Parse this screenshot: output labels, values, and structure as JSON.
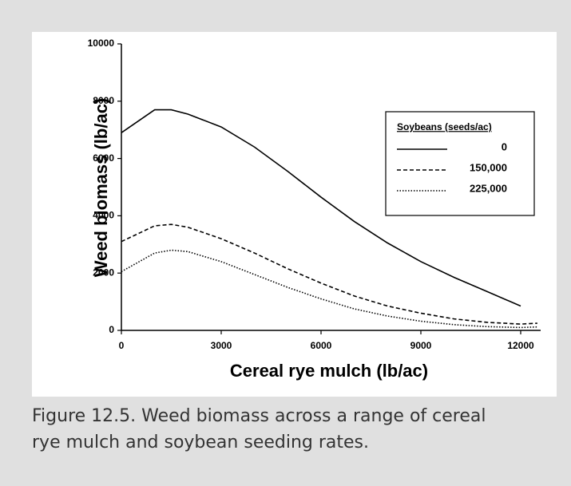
{
  "chart_data": {
    "type": "line",
    "xlabel": "Cereal rye mulch (lb/ac)",
    "ylabel": "Weed biomass (lb/ac)",
    "caption": "Figure 12.5. Weed biomass across a range of cereal rye mulch and soybean seeding rates.",
    "legend_title": "Soybeans (seeds/ac)",
    "legend": "upper right",
    "x": [
      0,
      1000,
      1500,
      2000,
      3000,
      4000,
      5000,
      6000,
      7000,
      8000,
      9000,
      10000,
      11000,
      12000,
      12500
    ],
    "series": [
      {
        "name": "0",
        "color": "#000000",
        "style": "solid",
        "values": [
          6900,
          7700,
          7700,
          7550,
          7100,
          6400,
          5550,
          4650,
          3800,
          3050,
          2400,
          1850,
          1350,
          850,
          null
        ]
      },
      {
        "name": "150,000",
        "color": "#000000",
        "style": "dashed",
        "values": [
          3100,
          3650,
          3700,
          3600,
          3200,
          2700,
          2150,
          1650,
          1200,
          850,
          600,
          400,
          280,
          220,
          250
        ]
      },
      {
        "name": "225,000",
        "color": "#000000",
        "style": "dotted",
        "values": [
          2050,
          2700,
          2800,
          2750,
          2400,
          1950,
          1500,
          1100,
          750,
          500,
          320,
          200,
          130,
          100,
          120
        ]
      }
    ],
    "xlim": [
      0,
      12600
    ],
    "xticks": [
      0,
      3000,
      6000,
      9000,
      12000
    ],
    "ylim": [
      0,
      10000
    ],
    "yticks": [
      0,
      2000,
      4000,
      6000,
      8000,
      10000
    ]
  }
}
